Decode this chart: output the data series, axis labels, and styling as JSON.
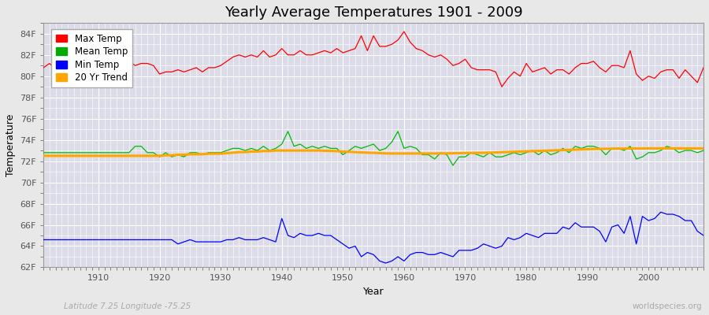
{
  "title": "Yearly Average Temperatures 1901 - 2009",
  "xlabel": "Year",
  "ylabel": "Temperature",
  "subtitle_left": "Latitude 7.25 Longitude -75.25",
  "subtitle_right": "worldspecies.org",
  "ylim": [
    62,
    85
  ],
  "yticks": [
    62,
    64,
    66,
    68,
    70,
    72,
    74,
    76,
    78,
    80,
    82,
    84
  ],
  "ytick_labels": [
    "62F",
    "64F",
    "66F",
    "68F",
    "70F",
    "72F",
    "74F",
    "76F",
    "78F",
    "80F",
    "82F",
    "84F"
  ],
  "xlim": [
    1901,
    2009
  ],
  "plot_bg_color": "#dcdce8",
  "fig_bg_color": "#e8e8e8",
  "grid_color": "#ffffff",
  "legend_items": [
    {
      "label": "Max Temp",
      "color": "#ff0000"
    },
    {
      "label": "Mean Temp",
      "color": "#00aa00"
    },
    {
      "label": "Min Temp",
      "color": "#0000ff"
    },
    {
      "label": "20 Yr Trend",
      "color": "#ffa500"
    }
  ],
  "years": [
    1901,
    1902,
    1903,
    1904,
    1905,
    1906,
    1907,
    1908,
    1909,
    1910,
    1911,
    1912,
    1913,
    1914,
    1915,
    1916,
    1917,
    1918,
    1919,
    1920,
    1921,
    1922,
    1923,
    1924,
    1925,
    1926,
    1927,
    1928,
    1929,
    1930,
    1931,
    1932,
    1933,
    1934,
    1935,
    1936,
    1937,
    1938,
    1939,
    1940,
    1941,
    1942,
    1943,
    1944,
    1945,
    1946,
    1947,
    1948,
    1949,
    1950,
    1951,
    1952,
    1953,
    1954,
    1955,
    1956,
    1957,
    1958,
    1959,
    1960,
    1961,
    1962,
    1963,
    1964,
    1965,
    1966,
    1967,
    1968,
    1969,
    1970,
    1971,
    1972,
    1973,
    1974,
    1975,
    1976,
    1977,
    1978,
    1979,
    1980,
    1981,
    1982,
    1983,
    1984,
    1985,
    1986,
    1987,
    1988,
    1989,
    1990,
    1991,
    1992,
    1993,
    1994,
    1995,
    1996,
    1997,
    1998,
    1999,
    2000,
    2001,
    2002,
    2003,
    2004,
    2005,
    2006,
    2007,
    2008,
    2009
  ],
  "max_temp": [
    80.8,
    81.2,
    80.6,
    80.4,
    80.8,
    81.0,
    80.6,
    80.8,
    80.8,
    81.4,
    81.4,
    81.0,
    80.6,
    81.0,
    81.4,
    81.0,
    81.2,
    81.2,
    81.0,
    80.2,
    80.4,
    80.4,
    80.6,
    80.4,
    80.6,
    80.8,
    80.4,
    80.8,
    80.8,
    81.0,
    81.4,
    81.8,
    82.0,
    81.8,
    82.0,
    81.8,
    82.4,
    81.8,
    82.0,
    82.6,
    82.0,
    82.0,
    82.4,
    82.0,
    82.0,
    82.2,
    82.4,
    82.2,
    82.6,
    82.2,
    82.4,
    82.6,
    83.8,
    82.4,
    83.8,
    82.8,
    82.8,
    83.0,
    83.4,
    84.2,
    83.2,
    82.6,
    82.4,
    82.0,
    81.8,
    82.0,
    81.6,
    81.0,
    81.2,
    81.6,
    80.8,
    80.6,
    80.6,
    80.6,
    80.4,
    79.0,
    79.8,
    80.4,
    80.0,
    81.2,
    80.4,
    80.6,
    80.8,
    80.2,
    80.6,
    80.6,
    80.2,
    80.8,
    81.2,
    81.2,
    81.4,
    80.8,
    80.4,
    81.0,
    81.0,
    80.8,
    82.4,
    80.2,
    79.6,
    80.0,
    79.8,
    80.4,
    80.6,
    80.6,
    79.8,
    80.6,
    80.0,
    79.4,
    80.8
  ],
  "mean_temp": [
    72.8,
    72.8,
    72.8,
    72.8,
    72.8,
    72.8,
    72.8,
    72.8,
    72.8,
    72.8,
    72.8,
    72.8,
    72.8,
    72.8,
    72.8,
    73.4,
    73.4,
    72.8,
    72.8,
    72.4,
    72.8,
    72.4,
    72.6,
    72.4,
    72.8,
    72.8,
    72.6,
    72.8,
    72.8,
    72.8,
    73.0,
    73.2,
    73.2,
    73.0,
    73.2,
    73.0,
    73.4,
    73.0,
    73.2,
    73.6,
    74.8,
    73.4,
    73.6,
    73.2,
    73.4,
    73.2,
    73.4,
    73.2,
    73.2,
    72.6,
    73.0,
    73.4,
    73.2,
    73.4,
    73.6,
    73.0,
    73.2,
    73.8,
    74.8,
    73.2,
    73.4,
    73.2,
    72.6,
    72.6,
    72.2,
    72.8,
    72.6,
    71.6,
    72.4,
    72.4,
    72.8,
    72.6,
    72.4,
    72.8,
    72.4,
    72.4,
    72.6,
    72.8,
    72.6,
    72.8,
    73.0,
    72.6,
    73.0,
    72.6,
    72.8,
    73.2,
    72.8,
    73.4,
    73.2,
    73.4,
    73.4,
    73.2,
    72.6,
    73.2,
    73.2,
    73.0,
    73.4,
    72.2,
    72.4,
    72.8,
    72.8,
    73.0,
    73.4,
    73.2,
    72.8,
    73.0,
    73.0,
    72.8,
    73.0
  ],
  "min_temp": [
    64.6,
    64.6,
    64.6,
    64.6,
    64.6,
    64.6,
    64.6,
    64.6,
    64.6,
    64.6,
    64.6,
    64.6,
    64.6,
    64.6,
    64.6,
    64.6,
    64.6,
    64.6,
    64.6,
    64.6,
    64.6,
    64.6,
    64.2,
    64.4,
    64.6,
    64.4,
    64.4,
    64.4,
    64.4,
    64.4,
    64.6,
    64.6,
    64.8,
    64.6,
    64.6,
    64.6,
    64.8,
    64.6,
    64.4,
    66.6,
    65.0,
    64.8,
    65.2,
    65.0,
    65.0,
    65.2,
    65.0,
    65.0,
    64.6,
    64.2,
    63.8,
    64.0,
    63.0,
    63.4,
    63.2,
    62.6,
    62.4,
    62.6,
    63.0,
    62.6,
    63.2,
    63.4,
    63.4,
    63.2,
    63.2,
    63.4,
    63.2,
    63.0,
    63.6,
    63.6,
    63.6,
    63.8,
    64.2,
    64.0,
    63.8,
    64.0,
    64.8,
    64.6,
    64.8,
    65.2,
    65.0,
    64.8,
    65.2,
    65.2,
    65.2,
    65.8,
    65.6,
    66.2,
    65.8,
    65.8,
    65.8,
    65.4,
    64.4,
    65.8,
    66.0,
    65.2,
    66.8,
    64.2,
    66.8,
    66.4,
    66.6,
    67.2,
    67.0,
    67.0,
    66.8,
    66.4,
    66.4,
    65.4,
    65.0
  ],
  "trend": [
    72.5,
    72.5,
    72.5,
    72.5,
    72.5,
    72.5,
    72.5,
    72.5,
    72.5,
    72.5,
    72.5,
    72.5,
    72.5,
    72.5,
    72.5,
    72.5,
    72.5,
    72.5,
    72.5,
    72.5,
    72.55,
    72.55,
    72.6,
    72.6,
    72.65,
    72.65,
    72.65,
    72.7,
    72.7,
    72.7,
    72.75,
    72.8,
    72.85,
    72.85,
    72.9,
    72.9,
    72.95,
    72.95,
    73.0,
    73.0,
    73.0,
    73.0,
    73.0,
    73.0,
    73.0,
    73.0,
    72.98,
    72.96,
    72.94,
    72.9,
    72.88,
    72.85,
    72.82,
    72.8,
    72.78,
    72.75,
    72.73,
    72.72,
    72.72,
    72.72,
    72.72,
    72.72,
    72.72,
    72.72,
    72.72,
    72.72,
    72.73,
    72.74,
    72.75,
    72.76,
    72.77,
    72.78,
    72.79,
    72.8,
    72.82,
    72.84,
    72.86,
    72.88,
    72.9,
    72.92,
    72.94,
    72.96,
    72.98,
    73.0,
    73.02,
    73.04,
    73.06,
    73.08,
    73.1,
    73.12,
    73.14,
    73.15,
    73.16,
    73.17,
    73.18,
    73.18,
    73.19,
    73.19,
    73.19,
    73.2,
    73.2,
    73.2,
    73.2,
    73.2,
    73.2,
    73.2,
    73.2,
    73.2,
    73.2
  ]
}
